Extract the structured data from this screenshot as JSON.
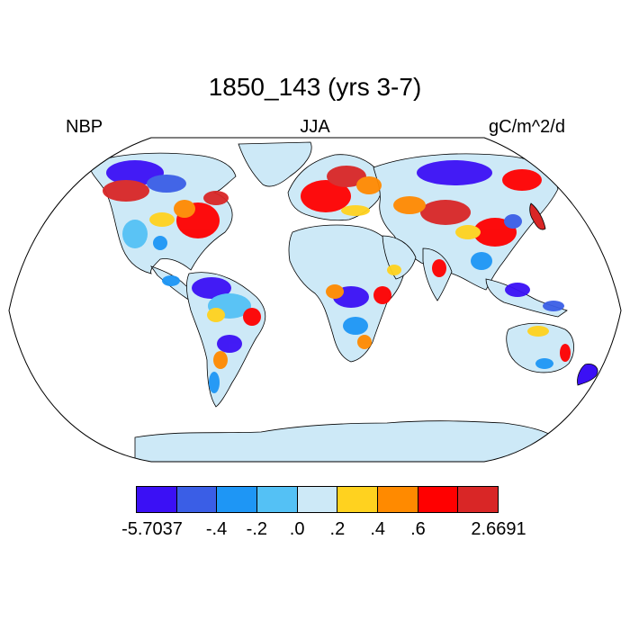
{
  "title": "1850_143 (yrs 3-7)",
  "left_label": "NBP",
  "center_label": "JJA",
  "right_label": "gC/m^2/d",
  "colorbar": {
    "colors": [
      "#3b10f5",
      "#3a5ee6",
      "#1e96f5",
      "#54c1f5",
      "#cde9f7",
      "#ffd21f",
      "#ff8a00",
      "#ff0000",
      "#d92626"
    ],
    "tick_labels": [
      "-5.7037",
      "-.4",
      "-.2",
      ".0",
      ".2",
      ".4",
      ".6",
      "2.6691"
    ]
  },
  "map": {
    "projection": "Robinson",
    "ocean_color": "#ffffff",
    "land_base_color": "#cde9f7",
    "outline_color": "#000000"
  }
}
